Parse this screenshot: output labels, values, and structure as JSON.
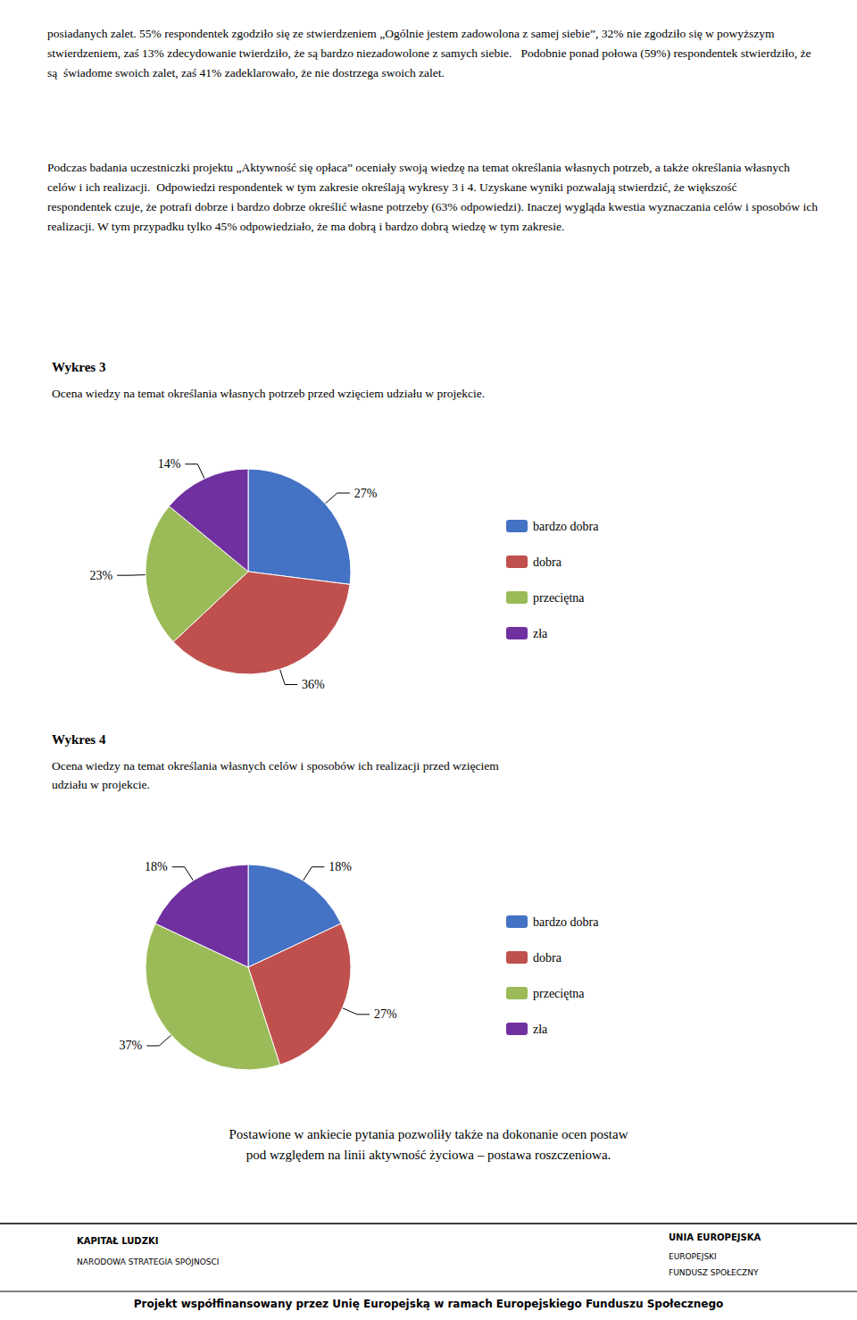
{
  "paragraphs": [
    [
      "posiadanych zalet. 55% respondentek zgodziło się ze stwierdzeniem „Ogólnie jestem zadowolona z samej siebie”, 32% nie zgodziło się w powyższym",
      "stwierdzeniem, zaś 13% zdecydowanie twierdziło, że są bardzo niezadowolone z samych siebie.   Podobnie ponad połowa (59%) respondentek stwierdziło, że",
      "są  świadome swoich zalet, zaś 41% zadeklarowało, że nie dostrzega swoich zalet."
    ],
    [
      "Podczas badania uczestniczki projektu „Aktywność się opłaca” oceniały swoją wiedzę na temat określania własnych potrzeb, a także określania własnych",
      "celów i ich realizacji.  Odpowiedzi respondentek w tym zakresie określają wykresy 3 i 4. Uzyskane wyniki pozwalają stwierdzić, że większość",
      "respondentek czuje, że potrafi dobrze i bardzo dobrze określić własne potrzeby (63% odpowiedzi). Inaczej wygląda kwestia wyznaczania celów i sposobów ich",
      "realizacji. W tym przypadku tylko 45% odpowiedziało, że ma dobrą i bardzo dobrą wiedzę w tym zakresie."
    ]
  ],
  "chart_data": [
    {
      "type": "pie",
      "title": "Wykres 3",
      "subtitle": "Ocena wiedzy na temat określania własnych potrzeb przed wzięciem udziału w projekcie.",
      "categories": [
        "bardzo dobra",
        "dobra",
        "przeciętna",
        "zła"
      ],
      "values": [
        27,
        36,
        23,
        14
      ],
      "value_labels": [
        "27%",
        "36%",
        "23%",
        "14%"
      ],
      "colors": [
        "#4472c4",
        "#c0504d",
        "#9bbb59",
        "#7030a0"
      ],
      "data_labels": true,
      "legend": "right"
    },
    {
      "type": "pie",
      "title": "Wykres 4",
      "subtitle": "Ocena wiedzy na temat określania własnych celów i sposobów ich realizacji przed wzięciem\nudziału w projekcie.",
      "categories": [
        "bardzo dobra",
        "dobra",
        "przeciętna",
        "zła"
      ],
      "values": [
        18,
        27,
        37,
        18
      ],
      "value_labels": [
        "18%",
        "27%",
        "37%",
        "18%"
      ],
      "colors": [
        "#4472c4",
        "#c0504d",
        "#9bbb59",
        "#7030a0"
      ],
      "data_labels": true,
      "legend": "right"
    }
  ],
  "footer": [
    "Postawione w ankiecie pytania pozwoliły także na dokonanie ocen postaw",
    "pod względem na linii aktywność życiowa – postawa roszczeniowa."
  ],
  "annotations": [
    "KAPITAŁ LUDZKI",
    "NARODOWA STRATEGIA SPÓJNOSCI",
    "UNIA EUROPEJSKA",
    "EUROPEJSKI",
    "FUNDUSZ SPOŁECZNY"
  ],
  "project_text": "Projekt współfinansowany przez Unię Europejską w ramach Europejskiego Funduszu Społecznego"
}
